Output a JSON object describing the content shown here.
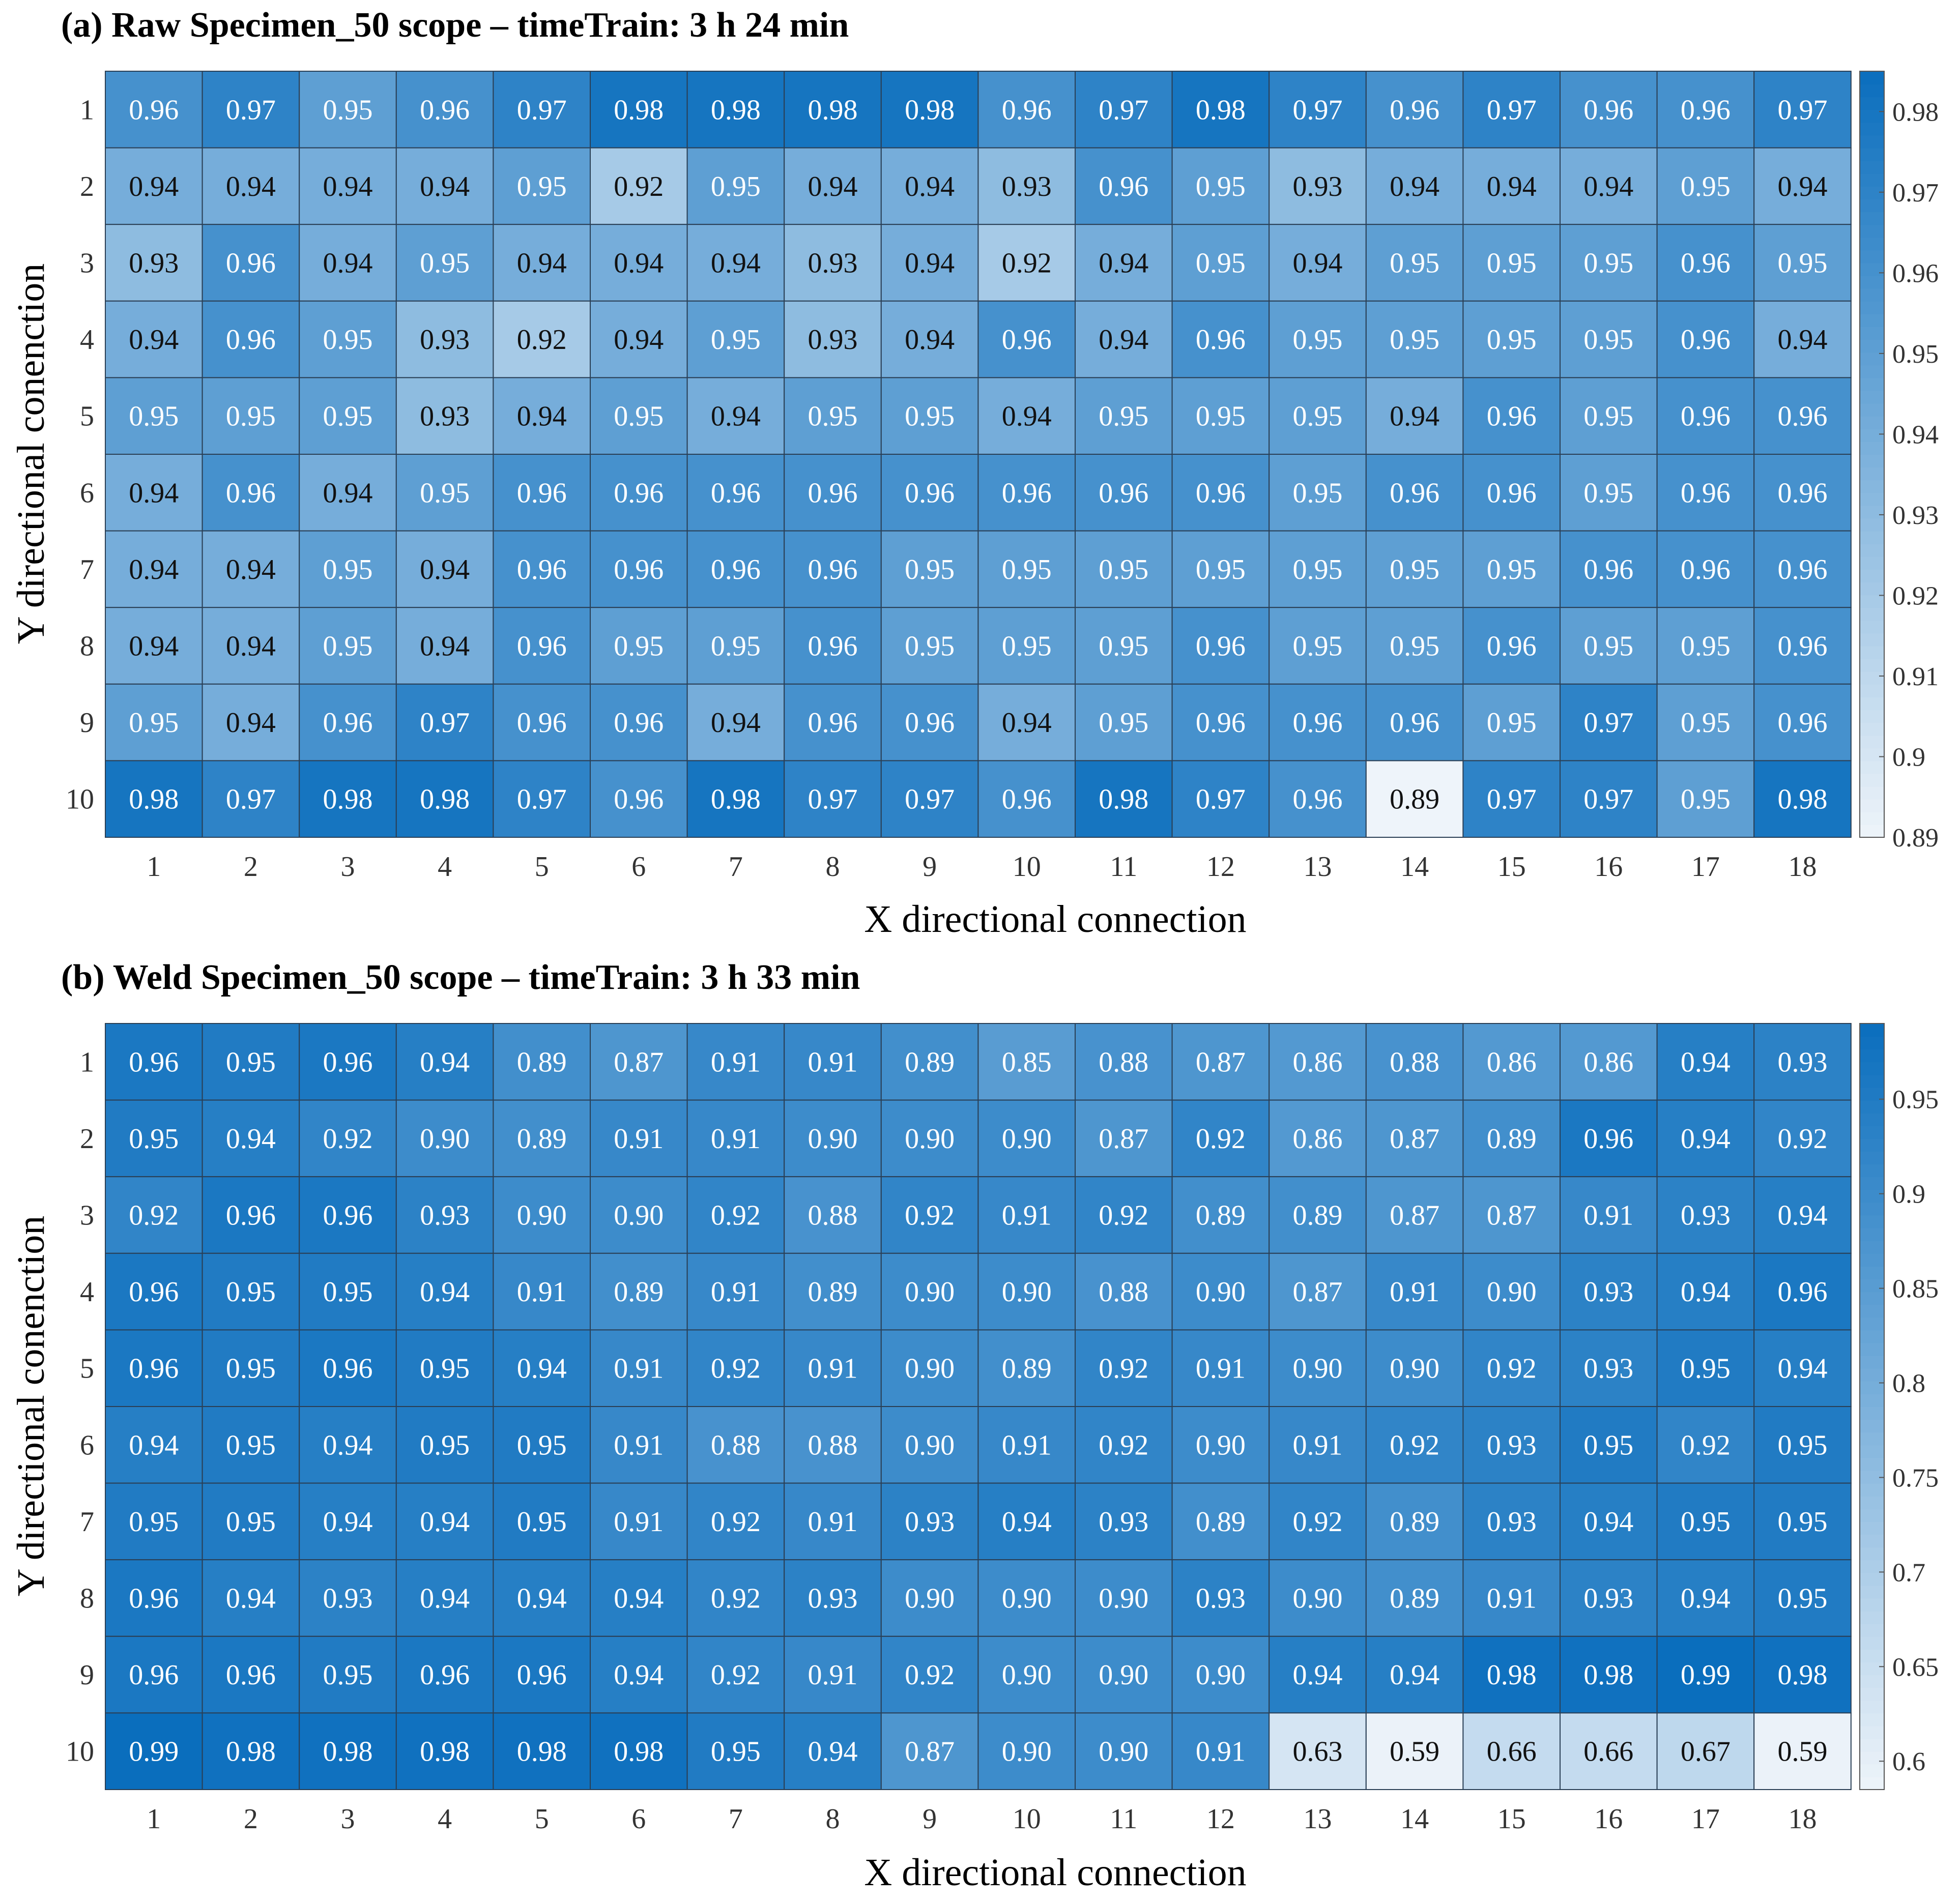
{
  "chart_data": [
    {
      "type": "heatmap",
      "title": "(a) Raw Specimen_50 scope – timeTrain: 3 h 24 min",
      "xlabel": "X directional connection",
      "ylabel": "Y directional conenction",
      "x": [
        "1",
        "2",
        "3",
        "4",
        "5",
        "6",
        "7",
        "8",
        "9",
        "10",
        "11",
        "12",
        "13",
        "14",
        "15",
        "16",
        "17",
        "18"
      ],
      "y": [
        "1",
        "2",
        "3",
        "4",
        "5",
        "6",
        "7",
        "8",
        "9",
        "10"
      ],
      "values": [
        [
          0.96,
          0.97,
          0.95,
          0.96,
          0.97,
          0.98,
          0.98,
          0.98,
          0.98,
          0.96,
          0.97,
          0.98,
          0.97,
          0.96,
          0.97,
          0.96,
          0.96,
          0.97
        ],
        [
          0.94,
          0.94,
          0.94,
          0.94,
          0.95,
          0.92,
          0.95,
          0.94,
          0.94,
          0.93,
          0.96,
          0.95,
          0.93,
          0.94,
          0.94,
          0.94,
          0.95,
          0.94
        ],
        [
          0.93,
          0.96,
          0.94,
          0.95,
          0.94,
          0.94,
          0.94,
          0.93,
          0.94,
          0.92,
          0.94,
          0.95,
          0.94,
          0.95,
          0.95,
          0.95,
          0.96,
          0.95
        ],
        [
          0.94,
          0.96,
          0.95,
          0.93,
          0.92,
          0.94,
          0.95,
          0.93,
          0.94,
          0.96,
          0.94,
          0.96,
          0.95,
          0.95,
          0.95,
          0.95,
          0.96,
          0.94
        ],
        [
          0.95,
          0.95,
          0.95,
          0.93,
          0.94,
          0.95,
          0.94,
          0.95,
          0.95,
          0.94,
          0.95,
          0.95,
          0.95,
          0.94,
          0.96,
          0.95,
          0.96,
          0.96
        ],
        [
          0.94,
          0.96,
          0.94,
          0.95,
          0.96,
          0.96,
          0.96,
          0.96,
          0.96,
          0.96,
          0.96,
          0.96,
          0.95,
          0.96,
          0.96,
          0.95,
          0.96,
          0.96
        ],
        [
          0.94,
          0.94,
          0.95,
          0.94,
          0.96,
          0.96,
          0.96,
          0.96,
          0.95,
          0.95,
          0.95,
          0.95,
          0.95,
          0.95,
          0.95,
          0.96,
          0.96,
          0.96
        ],
        [
          0.94,
          0.94,
          0.95,
          0.94,
          0.96,
          0.95,
          0.95,
          0.96,
          0.95,
          0.95,
          0.95,
          0.96,
          0.95,
          0.95,
          0.96,
          0.95,
          0.95,
          0.96
        ],
        [
          0.95,
          0.94,
          0.96,
          0.97,
          0.96,
          0.96,
          0.94,
          0.96,
          0.96,
          0.94,
          0.95,
          0.96,
          0.96,
          0.96,
          0.95,
          0.97,
          0.95,
          0.96
        ],
        [
          0.98,
          0.97,
          0.98,
          0.98,
          0.97,
          0.96,
          0.98,
          0.97,
          0.97,
          0.96,
          0.98,
          0.97,
          0.96,
          0.89,
          0.97,
          0.97,
          0.95,
          0.98
        ]
      ],
      "value_format": "2 decimals",
      "colorbar": {
        "ticks": [
          0.89,
          0.9,
          0.91,
          0.92,
          0.93,
          0.94,
          0.95,
          0.96,
          0.97,
          0.98
        ],
        "tick_labels": [
          "0.89",
          "0.9",
          "0.91",
          "0.92",
          "0.93",
          "0.94",
          "0.95",
          "0.96",
          "0.97",
          "0.98"
        ],
        "min": 0.89,
        "max": 0.985,
        "color_low": "#eef4fa",
        "color_high": "#0a6ebd"
      }
    },
    {
      "type": "heatmap",
      "title": "(b) Weld Specimen_50 scope – timeTrain: 3 h 33 min",
      "xlabel": "X directional connection",
      "ylabel": "Y directional conenction",
      "x": [
        "1",
        "2",
        "3",
        "4",
        "5",
        "6",
        "7",
        "8",
        "9",
        "10",
        "11",
        "12",
        "13",
        "14",
        "15",
        "16",
        "17",
        "18"
      ],
      "y": [
        "1",
        "2",
        "3",
        "4",
        "5",
        "6",
        "7",
        "8",
        "9",
        "10"
      ],
      "values": [
        [
          0.96,
          0.95,
          0.96,
          0.94,
          0.89,
          0.87,
          0.91,
          0.91,
          0.89,
          0.85,
          0.88,
          0.87,
          0.86,
          0.88,
          0.86,
          0.86,
          0.94,
          0.93
        ],
        [
          0.95,
          0.94,
          0.92,
          0.9,
          0.89,
          0.91,
          0.91,
          0.9,
          0.9,
          0.9,
          0.87,
          0.92,
          0.86,
          0.87,
          0.89,
          0.96,
          0.94,
          0.92
        ],
        [
          0.92,
          0.96,
          0.96,
          0.93,
          0.9,
          0.9,
          0.92,
          0.88,
          0.92,
          0.91,
          0.92,
          0.89,
          0.89,
          0.87,
          0.87,
          0.91,
          0.93,
          0.94
        ],
        [
          0.96,
          0.95,
          0.95,
          0.94,
          0.91,
          0.89,
          0.91,
          0.89,
          0.9,
          0.9,
          0.88,
          0.9,
          0.87,
          0.91,
          0.9,
          0.93,
          0.94,
          0.96
        ],
        [
          0.96,
          0.95,
          0.96,
          0.95,
          0.94,
          0.91,
          0.92,
          0.91,
          0.9,
          0.89,
          0.92,
          0.91,
          0.9,
          0.9,
          0.92,
          0.93,
          0.95,
          0.94
        ],
        [
          0.94,
          0.95,
          0.94,
          0.95,
          0.95,
          0.91,
          0.88,
          0.88,
          0.9,
          0.91,
          0.92,
          0.9,
          0.91,
          0.92,
          0.93,
          0.95,
          0.92,
          0.95
        ],
        [
          0.95,
          0.95,
          0.94,
          0.94,
          0.95,
          0.91,
          0.92,
          0.91,
          0.93,
          0.94,
          0.93,
          0.89,
          0.92,
          0.89,
          0.93,
          0.94,
          0.95,
          0.95
        ],
        [
          0.96,
          0.94,
          0.93,
          0.94,
          0.94,
          0.94,
          0.92,
          0.93,
          0.9,
          0.9,
          0.9,
          0.93,
          0.9,
          0.89,
          0.91,
          0.93,
          0.94,
          0.95
        ],
        [
          0.96,
          0.96,
          0.95,
          0.96,
          0.96,
          0.94,
          0.92,
          0.91,
          0.92,
          0.9,
          0.9,
          0.9,
          0.94,
          0.94,
          0.98,
          0.98,
          0.99,
          0.98
        ],
        [
          0.99,
          0.98,
          0.98,
          0.98,
          0.98,
          0.98,
          0.95,
          0.94,
          0.87,
          0.9,
          0.9,
          0.91,
          0.63,
          0.59,
          0.66,
          0.66,
          0.67,
          0.59
        ]
      ],
      "value_format": "2 decimals",
      "colorbar": {
        "ticks": [
          0.6,
          0.65,
          0.7,
          0.75,
          0.8,
          0.85,
          0.9,
          0.95
        ],
        "tick_labels": [
          "0.6",
          "0.65",
          "0.7",
          "0.75",
          "0.8",
          "0.85",
          "0.9",
          "0.95"
        ],
        "min": 0.585,
        "max": 0.99,
        "color_low": "#eef4fa",
        "color_high": "#0a6ebd"
      }
    }
  ]
}
